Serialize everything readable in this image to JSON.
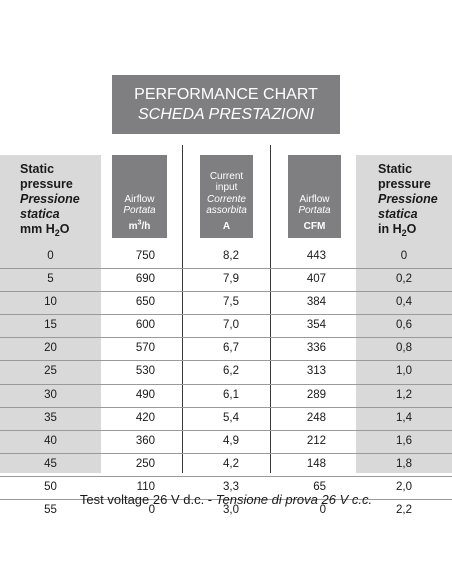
{
  "title": {
    "line1": "PERFORMANCE CHART",
    "line2": "SCHEDA PRESTAZIONI"
  },
  "columns": {
    "left": {
      "l1": "Static",
      "l2": "pressure",
      "l3": "Pressione",
      "l4": "statica",
      "l5": "mm H",
      "sub": "2",
      "l5b": "O"
    },
    "airflow_m3h": {
      "l1": "Airflow",
      "l2": "Portata",
      "unit": "m",
      "unit_sup": "3",
      "unit_end": "/h"
    },
    "current": {
      "l1": "Current",
      "l2": "input",
      "l3": "Corrente",
      "l4": "assorbita",
      "unit": "A"
    },
    "airflow_cfm": {
      "l1": "Airflow",
      "l2": "Portata",
      "unit": "CFM"
    },
    "right": {
      "l1": "Static",
      "l2": "pressure",
      "l3": "Pressione",
      "l4": "statica",
      "l5": "in H",
      "sub": "2",
      "l5b": "O"
    }
  },
  "rows": [
    [
      "0",
      "750",
      "8,2",
      "443",
      "0"
    ],
    [
      "5",
      "690",
      "7,9",
      "407",
      "0,2"
    ],
    [
      "10",
      "650",
      "7,5",
      "384",
      "0,4"
    ],
    [
      "15",
      "600",
      "7,0",
      "354",
      "0,6"
    ],
    [
      "20",
      "570",
      "6,7",
      "336",
      "0,8"
    ],
    [
      "25",
      "530",
      "6,2",
      "313",
      "1,0"
    ],
    [
      "30",
      "490",
      "6,1",
      "289",
      "1,2"
    ],
    [
      "35",
      "420",
      "5,4",
      "248",
      "1,4"
    ],
    [
      "40",
      "360",
      "4,9",
      "212",
      "1,6"
    ],
    [
      "45",
      "250",
      "4,2",
      "148",
      "1,8"
    ],
    [
      "50",
      "110",
      "3,3",
      "65",
      "2,0"
    ],
    [
      "55",
      "0",
      "3,0",
      "0",
      "2,2"
    ]
  ],
  "footer": {
    "en": "Test voltage 26 V d.c. - ",
    "it": "Tensione di prova 26 V c.c."
  }
}
